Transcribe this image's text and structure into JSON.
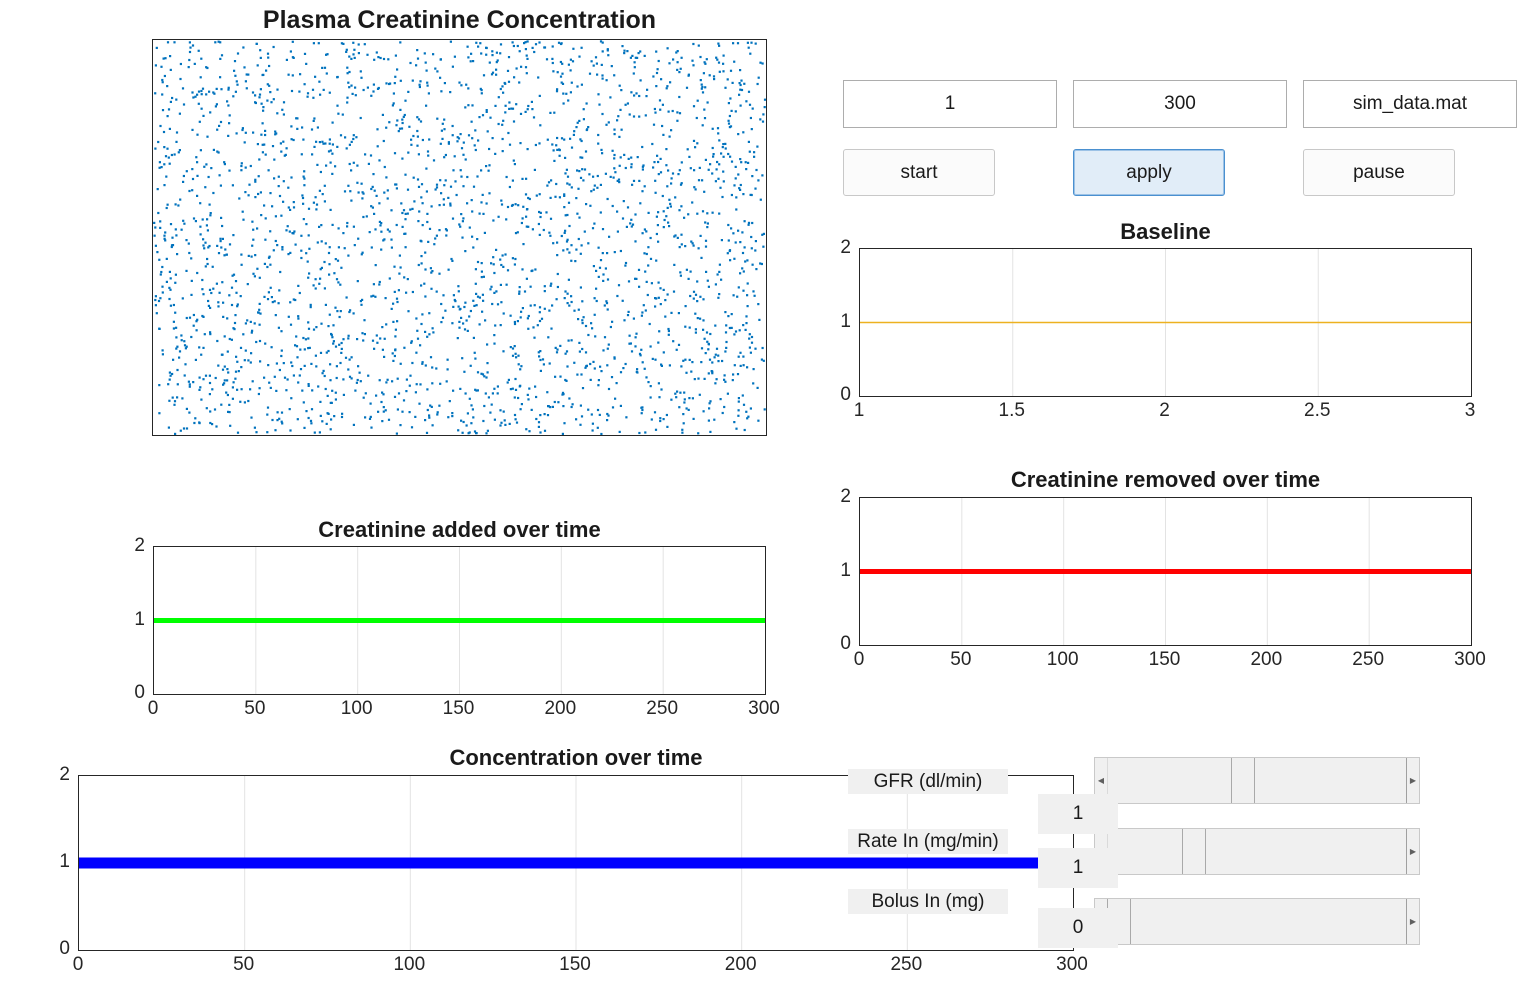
{
  "scatter_panel": {
    "title": "Plasma Creatinine Concentration",
    "marker_color": "#0072bd",
    "particle_count": 2600
  },
  "controls": {
    "field1_value": "1",
    "field2_value": "300",
    "field3_value": "sim_data.mat",
    "start_label": "start",
    "apply_label": "apply",
    "pause_label": "pause"
  },
  "sliders": {
    "gfr_label": "GFR (dl/min)",
    "gfr_value": "1",
    "gfr_position": 0.45,
    "rate_label": "Rate In (mg/min)",
    "rate_value": "1",
    "rate_position": 0.27,
    "bolus_label": "Bolus In (mg)",
    "bolus_value": "0",
    "bolus_position": 0.0
  },
  "chart_data": [
    {
      "id": "baseline",
      "type": "line",
      "title": "Baseline",
      "x": [
        1,
        3
      ],
      "series": [
        {
          "values": [
            1,
            1
          ],
          "color": "#edb120"
        }
      ],
      "xlim": [
        1,
        3
      ],
      "ylim": [
        0,
        2
      ],
      "xticks": [
        "1",
        "1.5",
        "2",
        "2.5",
        "3"
      ],
      "yticks": [
        "0",
        "1",
        "2"
      ],
      "grid": true
    },
    {
      "id": "removed",
      "type": "line",
      "title": "Creatinine removed over time",
      "x": [
        0,
        300
      ],
      "series": [
        {
          "values": [
            1,
            1
          ],
          "color": "#ff0000"
        }
      ],
      "xlim": [
        0,
        300
      ],
      "ylim": [
        0,
        2
      ],
      "xticks": [
        "0",
        "50",
        "100",
        "150",
        "200",
        "250",
        "300"
      ],
      "yticks": [
        "0",
        "1",
        "2"
      ],
      "grid": true
    },
    {
      "id": "added",
      "type": "line",
      "title": "Creatinine added over time",
      "x": [
        0,
        300
      ],
      "series": [
        {
          "values": [
            1,
            1
          ],
          "color": "#00ff00"
        }
      ],
      "xlim": [
        0,
        300
      ],
      "ylim": [
        0,
        2
      ],
      "xticks": [
        "0",
        "50",
        "100",
        "150",
        "200",
        "250",
        "300"
      ],
      "yticks": [
        "0",
        "1",
        "2"
      ],
      "grid": true
    },
    {
      "id": "concentration",
      "type": "line",
      "title": "Concentration over time",
      "x": [
        0,
        290
      ],
      "series": [
        {
          "values": [
            1,
            1
          ],
          "color": "#0000ff"
        }
      ],
      "xlim": [
        0,
        300
      ],
      "ylim": [
        0,
        2
      ],
      "xticks": [
        "0",
        "50",
        "100",
        "150",
        "200",
        "250",
        "300"
      ],
      "yticks": [
        "0",
        "1",
        "2"
      ],
      "grid": true
    }
  ]
}
